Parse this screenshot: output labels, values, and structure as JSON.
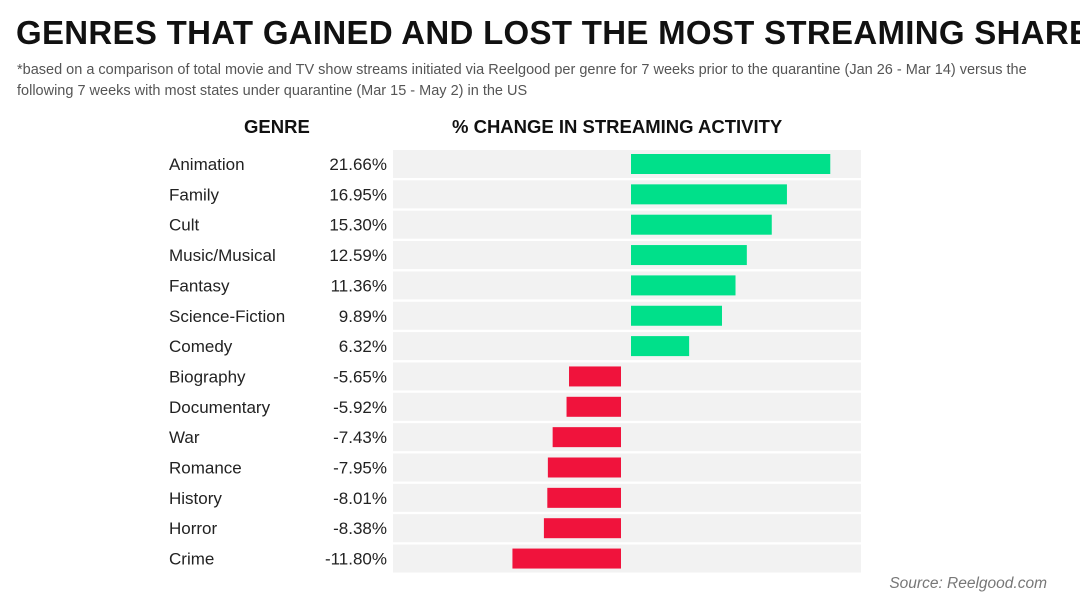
{
  "title": "GENRES THAT GAINED AND LOST THE MOST STREAMING SHARE",
  "subtitle": "*based on a comparison of total movie and TV show streams initiated via Reelgood per genre for 7 weeks prior to the quarantine (Jan 26 - Mar 14) versus the following 7 weeks with most states under quarantine (Mar 15 - May 2) in the US",
  "source": "Source: Reelgood.com",
  "colors": {
    "positive": "#00e08a",
    "negative": "#f0133c",
    "row_bg": "#f2f2f2"
  },
  "chart_data": {
    "type": "bar",
    "orientation": "horizontal",
    "xlabel": "% CHANGE IN STREAMING ACTIVITY",
    "ylabel": "GENRE",
    "categories": [
      "Animation",
      "Family",
      "Cult",
      "Music/Musical",
      "Fantasy",
      "Science-Fiction",
      "Comedy",
      "Biography",
      "Documentary",
      "War",
      "Romance",
      "History",
      "Horror",
      "Crime"
    ],
    "values": [
      21.66,
      16.95,
      15.3,
      12.59,
      11.36,
      9.89,
      6.32,
      -5.65,
      -5.92,
      -7.43,
      -7.95,
      -8.01,
      -8.38,
      -11.8
    ],
    "value_labels": [
      "21.66%",
      "16.95%",
      "15.30%",
      "12.59%",
      "11.36%",
      "9.89%",
      "6.32%",
      "-5.65%",
      "-5.92%",
      "-7.43%",
      "-7.95%",
      "-8.01%",
      "-8.38%",
      "-11.80%"
    ],
    "xlim": [
      -12.5,
      25.2
    ],
    "grid": false,
    "legend": "none"
  }
}
